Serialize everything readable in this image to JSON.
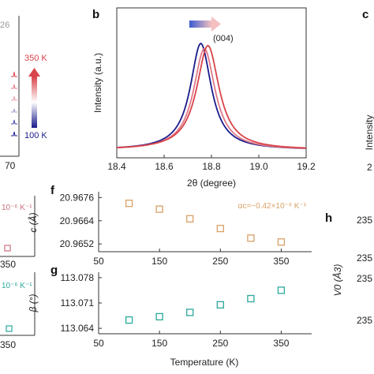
{
  "colors": {
    "blue": "#1a1a8c",
    "red": "#d9434a",
    "pink": "#e07a8a",
    "orange": "#d9a066",
    "teal": "#2aa89a",
    "gray": "#888888",
    "axis": "#333333"
  },
  "panels": {
    "a_fragment": {
      "label_26": "26",
      "temp_high": "350 K",
      "temp_low": "100 K",
      "x_tick": "70",
      "e_coef": "10⁻⁶ K⁻¹",
      "e_tick": "350",
      "d_coef": "10⁻⁶ K⁻¹",
      "d_tick": "350"
    },
    "b": {
      "letter": "b",
      "peak_label": "(004)"
    },
    "c_fragment": {
      "letter": "c",
      "ylabel": "Intensity",
      "tick": "2"
    },
    "f": {
      "letter": "f",
      "annotation": "αc=−0.42×10⁻⁶ K⁻¹"
    },
    "g": {
      "letter": "g"
    },
    "h_fragment": {
      "letter": "h",
      "ylabel": "V0 (Å3)",
      "ticks": [
        "235",
        "235",
        "235",
        "235"
      ]
    }
  },
  "chart_data": [
    {
      "id": "b",
      "type": "line",
      "xlabel": "2θ (degree)",
      "ylabel": "Intensity (a.u.)",
      "xlim": [
        18.4,
        19.2
      ],
      "x_ticks": [
        "18.4",
        "18.6",
        "18.8",
        "19.0",
        "19.2"
      ],
      "grid": false,
      "series": [
        {
          "color": "#1a1a8c",
          "center": 18.755,
          "width": 0.07,
          "peak": 1.0
        },
        {
          "color": "#e07a8a",
          "center": 18.77,
          "width": 0.072,
          "peak": 0.95
        },
        {
          "color": "#d9434a",
          "center": 18.785,
          "width": 0.075,
          "peak": 0.98
        }
      ]
    },
    {
      "id": "f",
      "type": "scatter",
      "xlabel": "",
      "ylabel": "c (Å)",
      "xlim": [
        50,
        400
      ],
      "ylim": [
        20.9648,
        20.9679
      ],
      "x_ticks": [
        "50",
        "150",
        "250",
        "350"
      ],
      "y_ticks": [
        "20.9652",
        "20.9664",
        "20.9676"
      ],
      "x": [
        100,
        150,
        200,
        250,
        300,
        350
      ],
      "y": [
        20.9673,
        20.967,
        20.9665,
        20.966,
        20.9655,
        20.9653
      ],
      "color": "#d9a066",
      "grid": false
    },
    {
      "id": "g",
      "type": "scatter",
      "xlabel": "Temperature (K)",
      "ylabel": "β (°)",
      "xlim": [
        50,
        400
      ],
      "ylim": [
        113.0625,
        113.0795
      ],
      "x_ticks": [
        "50",
        "150",
        "250",
        "350"
      ],
      "y_ticks": [
        "113.064",
        "113.071",
        "113.078"
      ],
      "x": [
        100,
        150,
        200,
        250,
        300,
        350
      ],
      "y": [
        113.0663,
        113.0672,
        113.0684,
        113.0705,
        113.0722,
        113.0745
      ],
      "color": "#2aa89a",
      "grid": false
    }
  ]
}
